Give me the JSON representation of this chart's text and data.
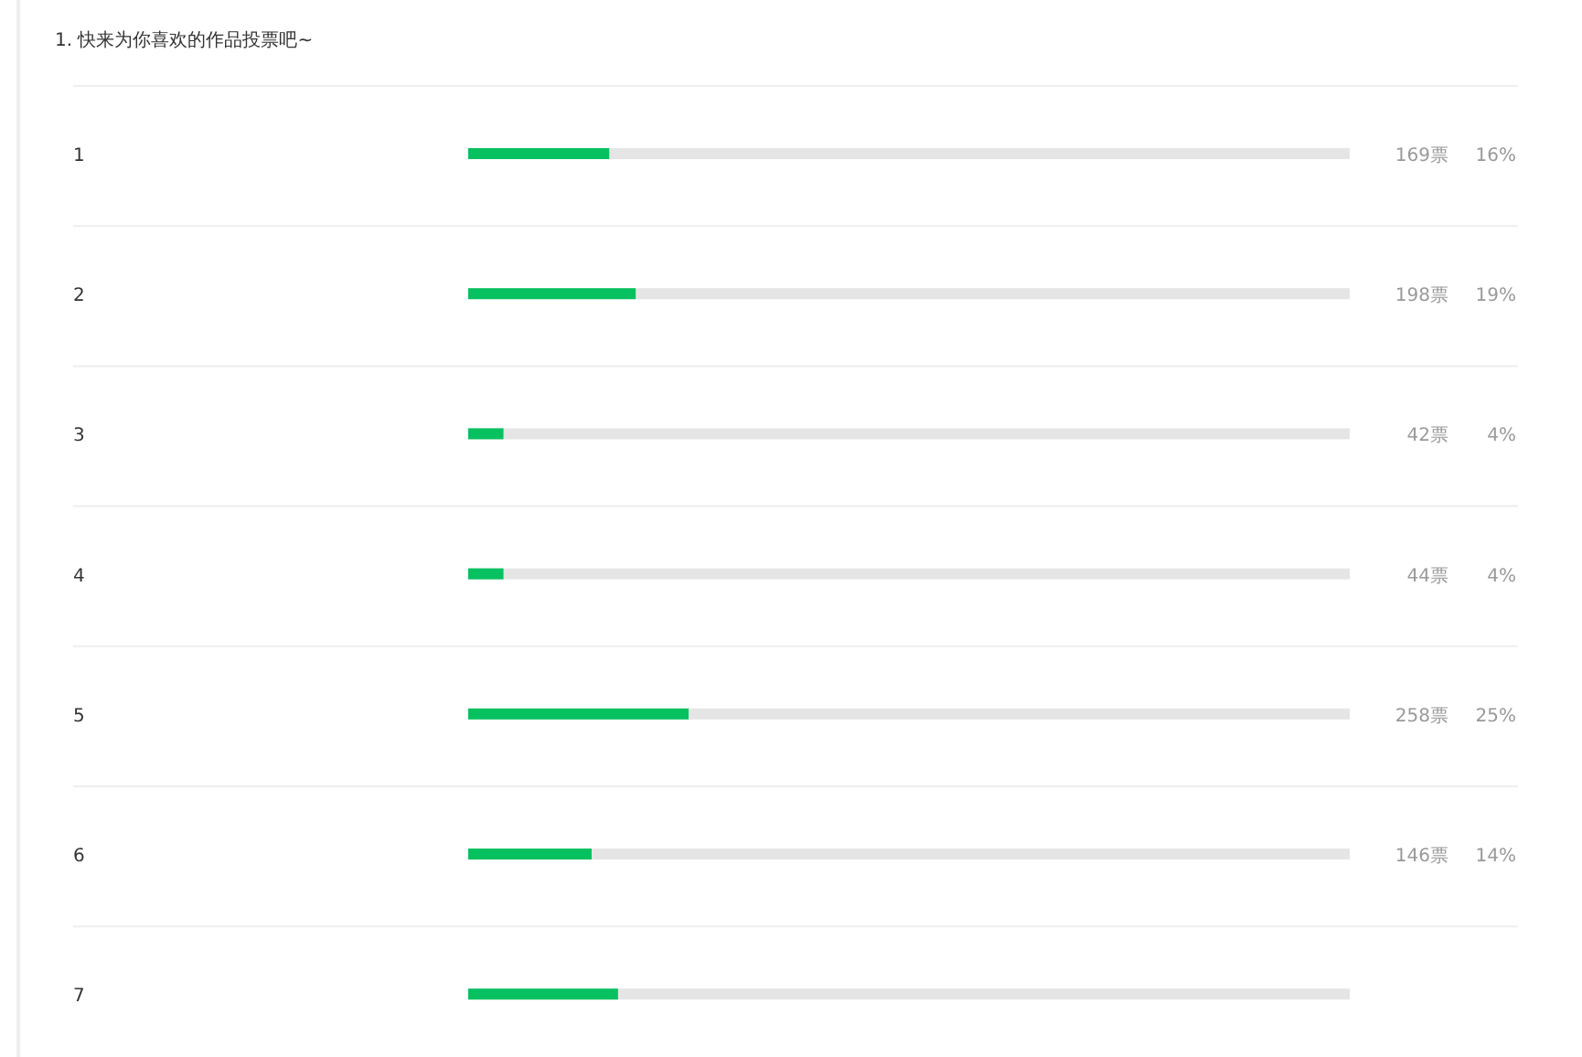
{
  "chart_data": {
    "type": "bar",
    "orientation": "horizontal",
    "title": "1. 快来为你喜欢的作品投票吧~",
    "categories": [
      "1",
      "2",
      "3",
      "4",
      "5",
      "6",
      "7"
    ],
    "series": [
      {
        "color": "#07c160",
        "values": [
          16,
          19,
          4,
          4,
          25,
          14,
          17
        ],
        "value_labels": [
          "16%",
          "19%",
          "4%",
          "4%",
          "25%",
          "14%",
          null
        ]
      }
    ],
    "xlim": [
      0,
      100
    ],
    "tick_labels": "y",
    "annotations": [
      "169票",
      "198票",
      "42票",
      "44票",
      "258票",
      "146票"
    ]
  }
}
